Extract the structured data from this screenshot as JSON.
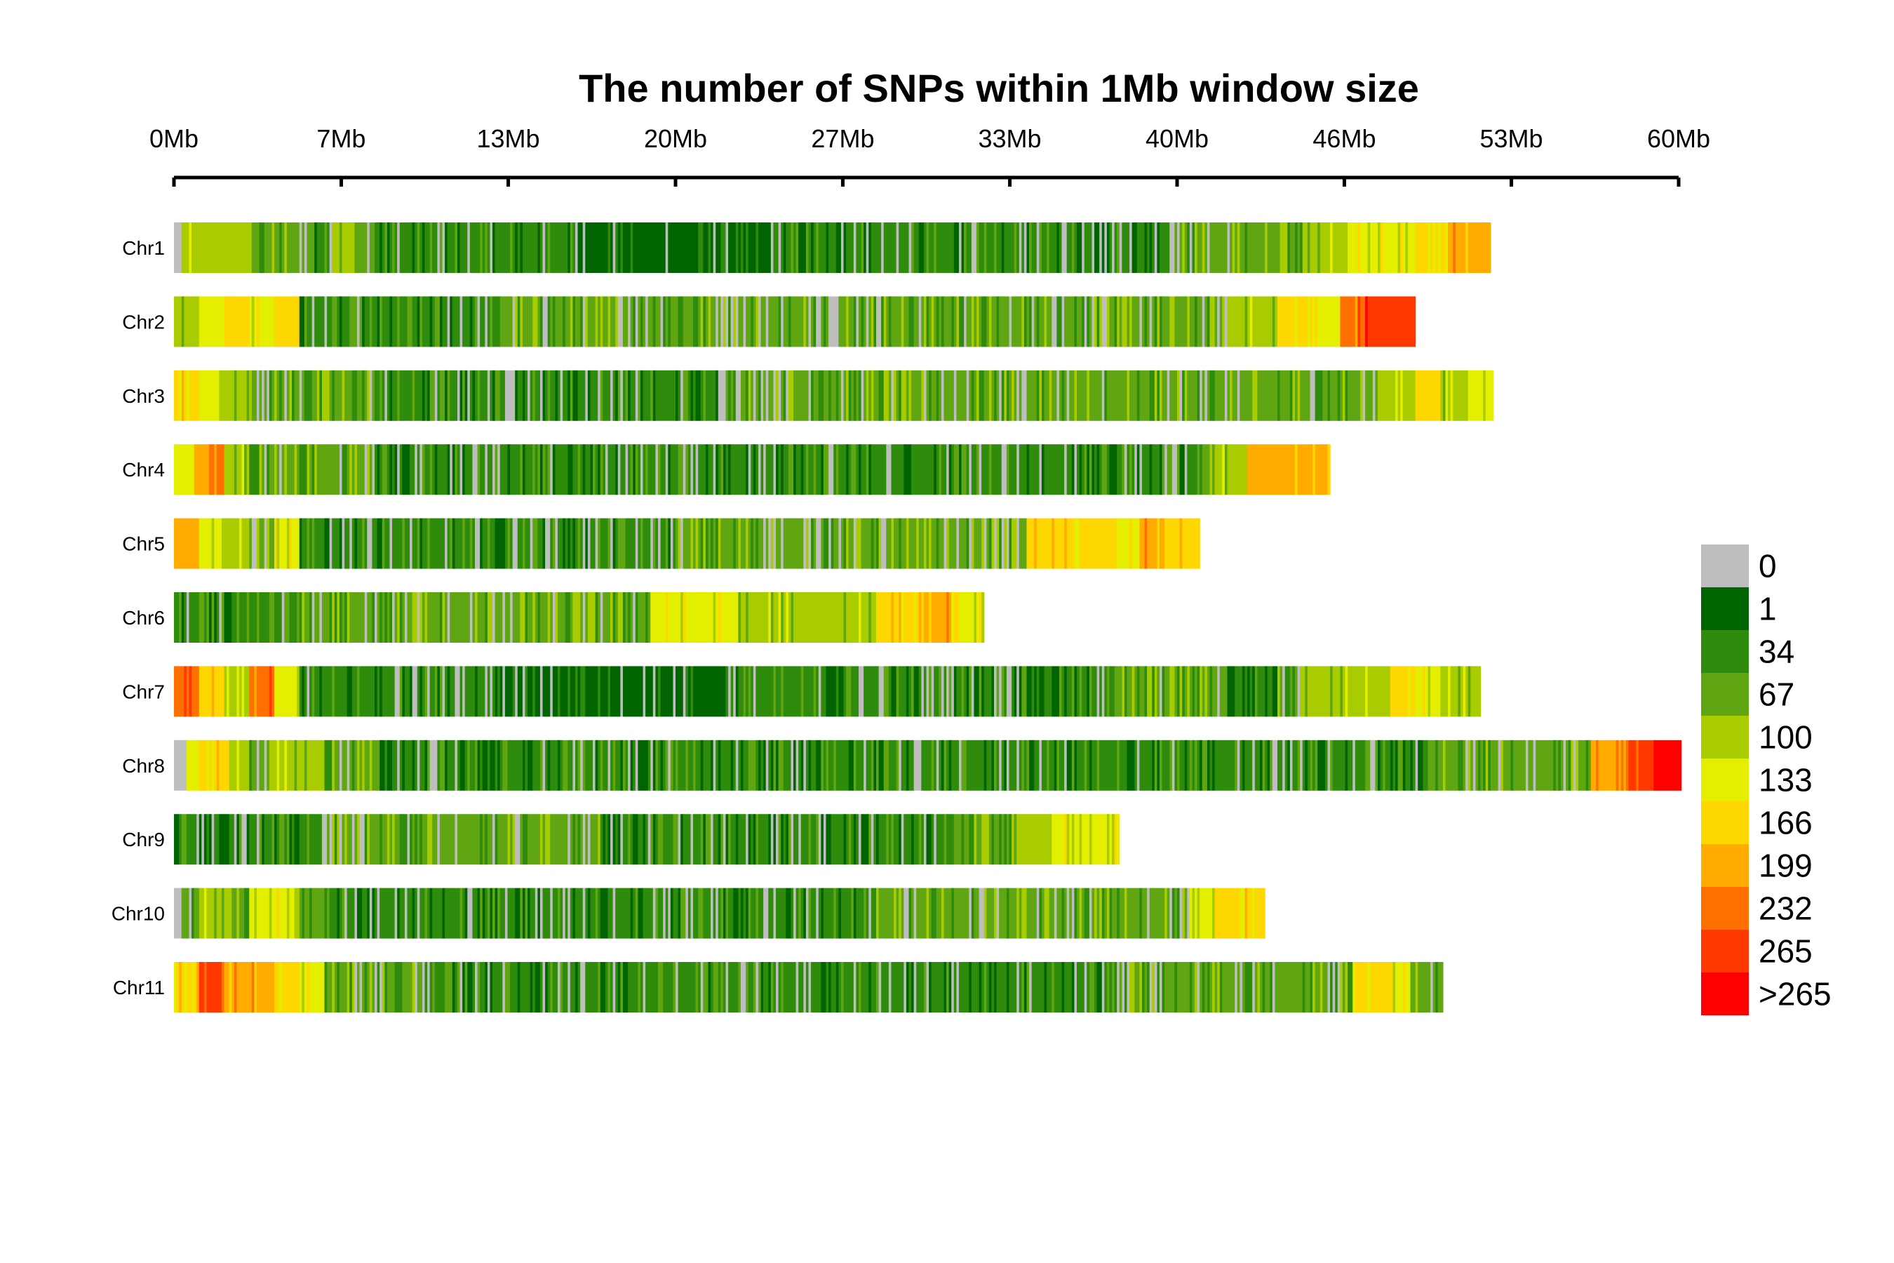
{
  "chart_data": {
    "type": "heatmap",
    "title": "The number of SNPs within 1Mb window size",
    "x_unit": "Mb",
    "x_range_mb": [
      0,
      60
    ],
    "x_ticks": [
      {
        "value": 0,
        "label": "0Mb"
      },
      {
        "value": 6.67,
        "label": "7Mb"
      },
      {
        "value": 13.33,
        "label": "13Mb"
      },
      {
        "value": 20,
        "label": "20Mb"
      },
      {
        "value": 26.67,
        "label": "27Mb"
      },
      {
        "value": 33.33,
        "label": "33Mb"
      },
      {
        "value": 40,
        "label": "40Mb"
      },
      {
        "value": 46.67,
        "label": "46Mb"
      },
      {
        "value": 53.33,
        "label": "53Mb"
      },
      {
        "value": 60,
        "label": "60Mb"
      }
    ],
    "legend": {
      "labels": [
        "0",
        "1",
        "34",
        "67",
        "100",
        "133",
        "166",
        "199",
        "232",
        "265",
        ">265"
      ],
      "colors": [
        "#bebebe",
        "#006400",
        "#2e8b0c",
        "#5fa612",
        "#a8cc00",
        "#e4ef00",
        "#ffd700",
        "#ffab00",
        "#ff7000",
        "#ff3800",
        "#ff0000"
      ]
    },
    "chromosomes": [
      {
        "name": "Chr1",
        "length_mb": 52.5,
        "profile": [
          [
            0.3,
            0
          ],
          [
            1.1,
            4
          ],
          [
            3.0,
            4
          ],
          [
            3.2,
            3
          ],
          [
            5.6,
            3
          ],
          [
            6.3,
            2
          ],
          [
            7.2,
            4
          ],
          [
            8.0,
            3
          ],
          [
            16,
            2
          ],
          [
            24,
            1
          ],
          [
            33,
            2
          ],
          [
            40,
            2
          ],
          [
            40.8,
            3
          ],
          [
            45.0,
            3
          ],
          [
            46.8,
            4
          ],
          [
            49.5,
            5
          ],
          [
            50.8,
            6
          ],
          [
            51.5,
            7
          ],
          [
            52.5,
            7
          ]
        ]
      },
      {
        "name": "Chr2",
        "length_mb": 49.5,
        "profile": [
          [
            1.0,
            4
          ],
          [
            2.0,
            5
          ],
          [
            3.0,
            6
          ],
          [
            4.0,
            5
          ],
          [
            5.0,
            6
          ],
          [
            5.6,
            2
          ],
          [
            13,
            2
          ],
          [
            21,
            3
          ],
          [
            27,
            3
          ],
          [
            35,
            3
          ],
          [
            42,
            3
          ],
          [
            44,
            4
          ],
          [
            45.6,
            6
          ],
          [
            46.5,
            5
          ],
          [
            47.5,
            8
          ],
          [
            48.5,
            9
          ],
          [
            49.5,
            9
          ]
        ]
      },
      {
        "name": "Chr3",
        "length_mb": 52.6,
        "profile": [
          [
            1.0,
            6
          ],
          [
            1.8,
            5
          ],
          [
            3.0,
            4
          ],
          [
            3.5,
            3
          ],
          [
            8,
            3
          ],
          [
            13,
            2
          ],
          [
            22,
            2
          ],
          [
            29,
            3
          ],
          [
            37,
            3
          ],
          [
            45,
            3
          ],
          [
            48,
            3
          ],
          [
            49.5,
            4
          ],
          [
            50.5,
            6
          ],
          [
            51.6,
            4
          ],
          [
            52.6,
            5
          ]
        ]
      },
      {
        "name": "Chr4",
        "length_mb": 46.1,
        "profile": [
          [
            0.8,
            5
          ],
          [
            1.3,
            7
          ],
          [
            2.0,
            8
          ],
          [
            3.0,
            4
          ],
          [
            8,
            3
          ],
          [
            12,
            2
          ],
          [
            18,
            2
          ],
          [
            28,
            2
          ],
          [
            34,
            2
          ],
          [
            40.8,
            2
          ],
          [
            41.5,
            3
          ],
          [
            42.8,
            4
          ],
          [
            45.2,
            7
          ],
          [
            46.1,
            7
          ]
        ]
      },
      {
        "name": "Chr5",
        "length_mb": 40.9,
        "profile": [
          [
            1.0,
            7
          ],
          [
            2.0,
            5
          ],
          [
            3.0,
            4
          ],
          [
            4.0,
            3
          ],
          [
            5.0,
            5
          ],
          [
            5.5,
            2
          ],
          [
            10,
            2
          ],
          [
            15,
            2
          ],
          [
            20,
            2
          ],
          [
            28,
            3
          ],
          [
            34,
            3
          ],
          [
            37.5,
            6
          ],
          [
            38.5,
            5
          ],
          [
            39.5,
            7
          ],
          [
            40.9,
            6
          ]
        ]
      },
      {
        "name": "Chr6",
        "length_mb": 32.3,
        "profile": [
          [
            5.0,
            2
          ],
          [
            12,
            3
          ],
          [
            19,
            3
          ],
          [
            19.2,
            5
          ],
          [
            22.5,
            5
          ],
          [
            23,
            4
          ],
          [
            28,
            4
          ],
          [
            30,
            6
          ],
          [
            31,
            7
          ],
          [
            32.3,
            5
          ]
        ]
      },
      {
        "name": "Chr7",
        "length_mb": 52.1,
        "profile": [
          [
            1.0,
            8
          ],
          [
            2.0,
            6
          ],
          [
            3.0,
            4
          ],
          [
            4.0,
            8
          ],
          [
            5.0,
            5
          ],
          [
            5.5,
            2
          ],
          [
            13,
            2
          ],
          [
            22,
            1
          ],
          [
            28,
            2
          ],
          [
            32,
            2
          ],
          [
            37,
            2
          ],
          [
            42,
            3
          ],
          [
            44,
            2
          ],
          [
            45,
            3
          ],
          [
            48.5,
            4
          ],
          [
            49.5,
            6
          ],
          [
            50.5,
            5
          ],
          [
            52.1,
            4
          ]
        ]
      },
      {
        "name": "Chr8",
        "length_mb": 60.1,
        "profile": [
          [
            0.5,
            0
          ],
          [
            1.0,
            5
          ],
          [
            2.2,
            6
          ],
          [
            3.0,
            4
          ],
          [
            4.0,
            3
          ],
          [
            6.0,
            4
          ],
          [
            8.0,
            3
          ],
          [
            16,
            2
          ],
          [
            24,
            2
          ],
          [
            32,
            2
          ],
          [
            40,
            2
          ],
          [
            48,
            2
          ],
          [
            50,
            2
          ],
          [
            53,
            3
          ],
          [
            56.5,
            3
          ],
          [
            57.5,
            7
          ],
          [
            58,
            8
          ],
          [
            59,
            9
          ],
          [
            60.1,
            10
          ]
        ]
      },
      {
        "name": "Chr9",
        "length_mb": 37.7,
        "profile": [
          [
            3.0,
            2
          ],
          [
            6.0,
            2
          ],
          [
            9.0,
            3
          ],
          [
            13,
            3
          ],
          [
            17,
            3
          ],
          [
            22,
            2
          ],
          [
            29,
            2
          ],
          [
            31,
            2
          ],
          [
            33.5,
            3
          ],
          [
            35,
            4
          ],
          [
            36.5,
            5
          ],
          [
            37.7,
            5
          ]
        ]
      },
      {
        "name": "Chr10",
        "length_mb": 43.5,
        "profile": [
          [
            0.3,
            0
          ],
          [
            1.0,
            3
          ],
          [
            2.0,
            4
          ],
          [
            3.0,
            3
          ],
          [
            5.0,
            5
          ],
          [
            6.0,
            3
          ],
          [
            10,
            2
          ],
          [
            16,
            2
          ],
          [
            22,
            2
          ],
          [
            28,
            2
          ],
          [
            34,
            3
          ],
          [
            40.5,
            3
          ],
          [
            41.5,
            5
          ],
          [
            42.5,
            6
          ],
          [
            43.5,
            6
          ]
        ]
      },
      {
        "name": "Chr11",
        "length_mb": 50.6,
        "profile": [
          [
            1.0,
            6
          ],
          [
            2.0,
            9
          ],
          [
            3.0,
            7
          ],
          [
            4.0,
            7
          ],
          [
            5.0,
            6
          ],
          [
            6.0,
            5
          ],
          [
            10,
            3
          ],
          [
            15,
            2
          ],
          [
            22,
            2
          ],
          [
            30,
            2
          ],
          [
            38,
            2
          ],
          [
            44,
            3
          ],
          [
            47,
            3
          ],
          [
            48.5,
            6
          ],
          [
            49.3,
            5
          ],
          [
            50.6,
            3
          ]
        ]
      }
    ]
  }
}
